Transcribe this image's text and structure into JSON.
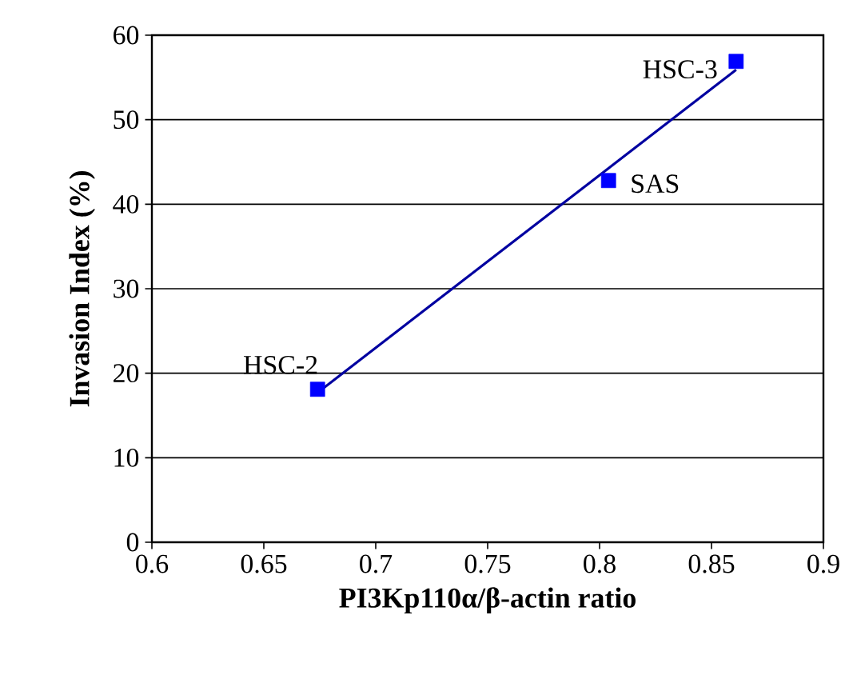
{
  "chart_data": {
    "type": "scatter",
    "xlabel": "PI3Kp110α/β-actin ratio",
    "ylabel": "Invasion Index (%)",
    "xlim": [
      0.6,
      0.9
    ],
    "xticks": [
      0.6,
      0.65,
      0.7,
      0.75,
      0.8,
      0.85,
      0.9
    ],
    "ylim": [
      0,
      60
    ],
    "yticks": [
      0,
      10,
      20,
      30,
      40,
      50,
      60
    ],
    "grid": "y",
    "series": [
      {
        "marker": "square",
        "color": "#0000ff",
        "x": [
          0.674,
          0.804,
          0.861
        ],
        "values": [
          18.1,
          42.8,
          56.9
        ]
      },
      {
        "type": "line",
        "marker": "none",
        "color": "#0000a0",
        "x": [
          0.674,
          0.861
        ],
        "values": [
          17.7,
          55.9
        ]
      }
    ],
    "annotations": [
      {
        "text": "HSC-2",
        "x": 0.674,
        "y": 18.1
      },
      {
        "text": "SAS",
        "x": 0.804,
        "y": 42.8
      },
      {
        "text": "HSC-3",
        "x": 0.861,
        "y": 56.9
      }
    ]
  }
}
